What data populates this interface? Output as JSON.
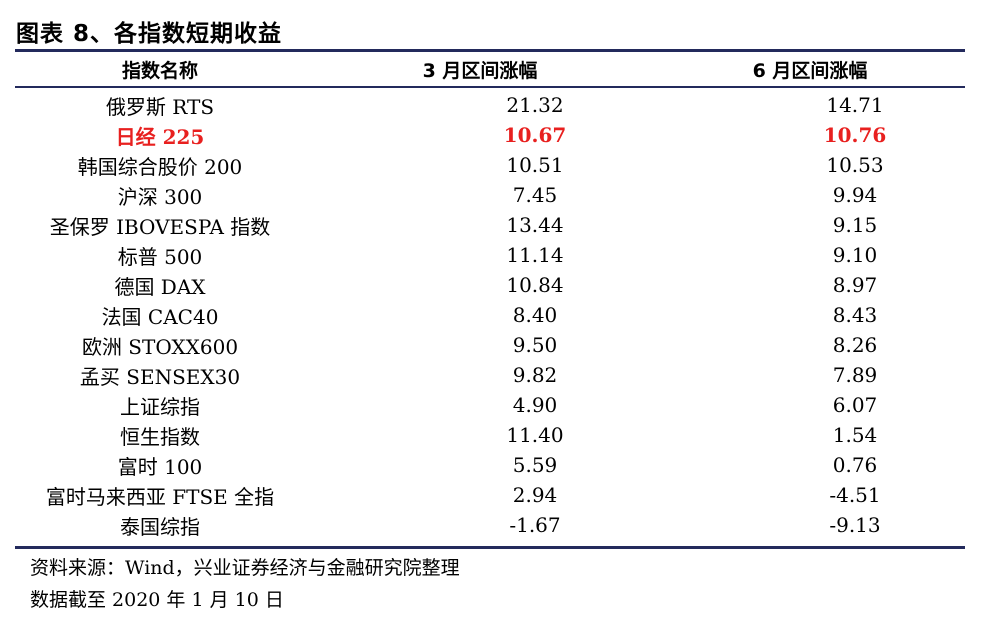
{
  "title": "图表 8、各指数短期收益",
  "columns": [
    "指数名称",
    "3 月区间涨幅",
    "6 月区间涨幅"
  ],
  "rows": [
    {
      "name": "俄罗斯 RTS",
      "m3": "21.32",
      "m6": "14.71"
    },
    {
      "name": "日经 225",
      "m3": "10.67",
      "m6": "10.76",
      "highlight": true
    },
    {
      "name": "韩国综合股价 200",
      "m3": "10.51",
      "m6": "10.53"
    },
    {
      "name": "沪深 300",
      "m3": "7.45",
      "m6": "9.94"
    },
    {
      "name": "圣保罗 IBOVESPA 指数",
      "m3": "13.44",
      "m6": "9.15"
    },
    {
      "name": "标普 500",
      "m3": "11.14",
      "m6": "9.10"
    },
    {
      "name": "德国 DAX",
      "m3": "10.84",
      "m6": "8.97"
    },
    {
      "name": "法国 CAC40",
      "m3": "8.40",
      "m6": "8.43"
    },
    {
      "name": "欧洲 STOXX600",
      "m3": "9.50",
      "m6": "8.26"
    },
    {
      "name": "孟买 SENSEX30",
      "m3": "9.82",
      "m6": "7.89"
    },
    {
      "name": "上证综指",
      "m3": "4.90",
      "m6": "6.07"
    },
    {
      "name": "恒生指数",
      "m3": "11.40",
      "m6": "1.54"
    },
    {
      "name": "富时 100",
      "m3": "5.59",
      "m6": "0.76"
    },
    {
      "name": "富时马来西亚 FTSE 全指",
      "m3": "2.94",
      "m6": "-4.51"
    },
    {
      "name": "泰国综指",
      "m3": "-1.67",
      "m6": "-9.13"
    }
  ],
  "source": "资料来源：Wind，兴业证券经济与金融研究院整理",
  "date_note": "数据截至 2020 年 1 月 10 日",
  "colors": {
    "rule": "#232a5c",
    "highlight": "#e8201f"
  }
}
